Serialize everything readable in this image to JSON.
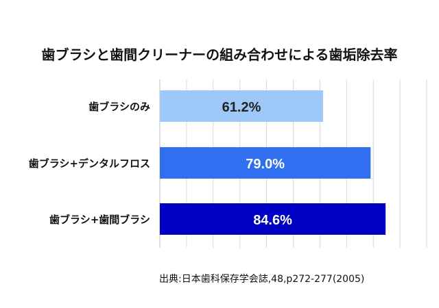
{
  "chart_data": {
    "type": "bar",
    "orientation": "horizontal",
    "title": "歯ブラシと歯間クリーナーの組み合わせによる歯垢除去率",
    "categories": [
      "歯ブラシのみ",
      "歯ブラシ+デンタルフロス",
      "歯ブラシ+歯間ブラシ"
    ],
    "values": [
      61.2,
      79.0,
      84.6
    ],
    "value_labels": [
      "61.2%",
      "79.0%",
      "84.6%"
    ],
    "colors": [
      "#9dc8f7",
      "#2f6ff0",
      "#0000c4"
    ],
    "label_colors": [
      "#222222",
      "#ffffff",
      "#ffffff"
    ],
    "xlim": [
      0,
      100
    ],
    "grid": true,
    "legend": "none"
  },
  "source": "出典:日本歯科保存学会誌,48,p272-277(2005)"
}
